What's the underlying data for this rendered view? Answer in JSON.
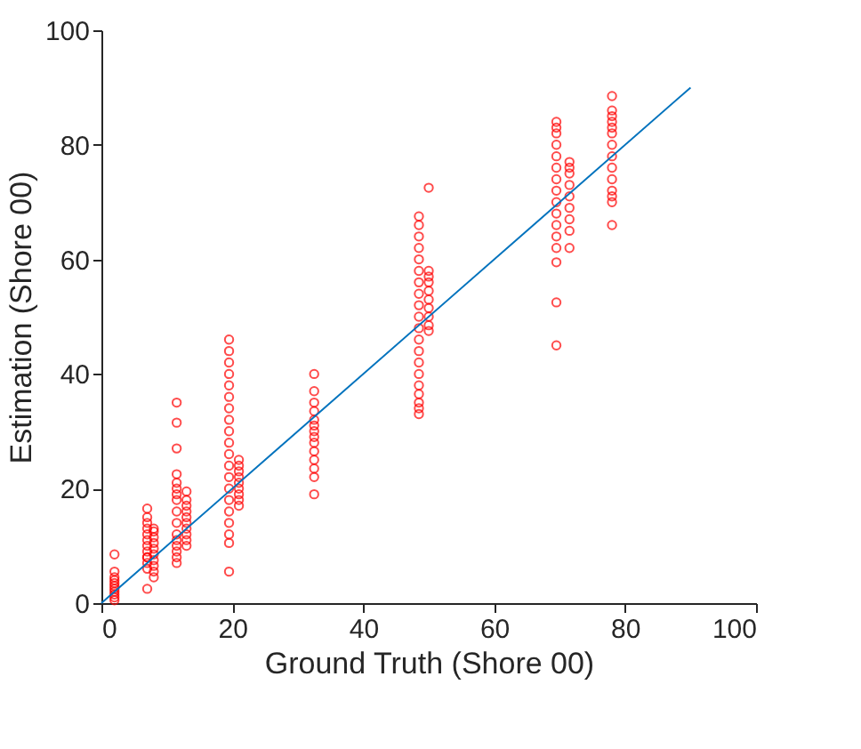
{
  "chart_data": {
    "type": "scatter",
    "xlabel": "Ground Truth (Shore 00)",
    "ylabel": "Estimation (Shore 00)",
    "xlim": [
      0,
      100
    ],
    "ylim": [
      0,
      100
    ],
    "xticks": [
      0,
      20,
      40,
      60,
      80,
      100
    ],
    "yticks": [
      0,
      20,
      40,
      60,
      80,
      100
    ],
    "grid": false,
    "series": [
      {
        "marker": "circle",
        "color": "#ff0000",
        "x": [
          2,
          2,
          2,
          2,
          2,
          2,
          2,
          2,
          2,
          2,
          2,
          7,
          7,
          7,
          7,
          7,
          7,
          7,
          7,
          7,
          7,
          7,
          7,
          7,
          8,
          8,
          8,
          8,
          8,
          8,
          8,
          8,
          8,
          8,
          11.5,
          11.5,
          11.5,
          11.5,
          11.5,
          11.5,
          11.5,
          11.5,
          11.5,
          11.5,
          11.5,
          11.5,
          11.5,
          11.5,
          11.5,
          11.5,
          13,
          13,
          13,
          13,
          13,
          13,
          13,
          13,
          13,
          13,
          19.5,
          19.5,
          19.5,
          19.5,
          19.5,
          19.5,
          19.5,
          19.5,
          19.5,
          19.5,
          19.5,
          19.5,
          19.5,
          19.5,
          19.5,
          19.5,
          19.5,
          19.5,
          19.5,
          19.5,
          21,
          21,
          21,
          21,
          21,
          21,
          21,
          21,
          21,
          32.5,
          32.5,
          32.5,
          32.5,
          32.5,
          32.5,
          32.5,
          32.5,
          32.5,
          32.5,
          32.5,
          32.5,
          32.5,
          32.5,
          48.5,
          48.5,
          48.5,
          48.5,
          48.5,
          48.5,
          48.5,
          48.5,
          48.5,
          48.5,
          48.5,
          48.5,
          48.5,
          48.5,
          48.5,
          48.5,
          48.5,
          48.5,
          48.5,
          48.5,
          50,
          50,
          50,
          50,
          50,
          50,
          50,
          50,
          50,
          50,
          69.5,
          69.5,
          69.5,
          69.5,
          69.5,
          69.5,
          69.5,
          69.5,
          69.5,
          69.5,
          69.5,
          69.5,
          69.5,
          69.5,
          69.5,
          69.5,
          71.5,
          71.5,
          71.5,
          71.5,
          71.5,
          71.5,
          71.5,
          71.5,
          71.5,
          78,
          78,
          78,
          78,
          78,
          78,
          78,
          78,
          78,
          78,
          78,
          78,
          78,
          78
        ],
        "values": [
          0.5,
          1,
          1.5,
          2,
          2.5,
          3,
          3.5,
          4,
          4.5,
          5.5,
          8.5,
          2.5,
          6,
          7,
          8,
          9,
          10,
          11,
          12,
          13,
          14,
          15,
          16.5,
          8,
          4.5,
          5.5,
          6.5,
          7.5,
          8.5,
          9.5,
          10.5,
          11.5,
          12.5,
          13,
          7,
          8,
          9,
          10,
          11,
          12,
          14,
          16,
          18,
          19,
          20,
          21,
          22.5,
          27,
          31.5,
          35,
          10,
          11,
          12,
          13,
          14,
          15,
          16,
          17,
          18,
          19.5,
          5.5,
          10.5,
          12,
          14,
          16,
          18,
          20,
          22,
          24,
          26,
          28,
          30,
          32,
          34,
          36,
          38,
          40,
          42,
          44,
          46,
          17,
          18,
          19,
          20,
          21,
          22,
          23,
          24,
          25,
          19,
          22,
          23.5,
          25,
          26.5,
          28,
          29,
          30,
          31,
          32,
          33.5,
          35,
          37,
          40,
          33,
          34,
          35,
          36.5,
          38,
          40,
          42,
          44,
          46,
          48,
          50,
          52,
          54,
          56,
          58,
          60,
          62,
          64,
          66,
          67.5,
          47.5,
          48.5,
          50,
          51.5,
          53,
          54.5,
          56,
          57,
          58,
          72.5,
          45,
          52.5,
          59.5,
          62,
          64,
          66,
          68,
          70,
          72,
          74,
          76,
          78,
          80,
          82,
          83,
          84,
          62,
          65,
          67,
          69,
          71,
          73,
          75,
          76,
          77,
          66,
          70,
          71,
          72,
          74,
          76,
          78,
          80,
          82,
          83,
          84,
          85,
          86,
          88.5
        ]
      },
      {
        "type": "line",
        "color": "#0072bd",
        "x": [
          0,
          90
        ],
        "values": [
          0,
          90
        ]
      }
    ]
  }
}
